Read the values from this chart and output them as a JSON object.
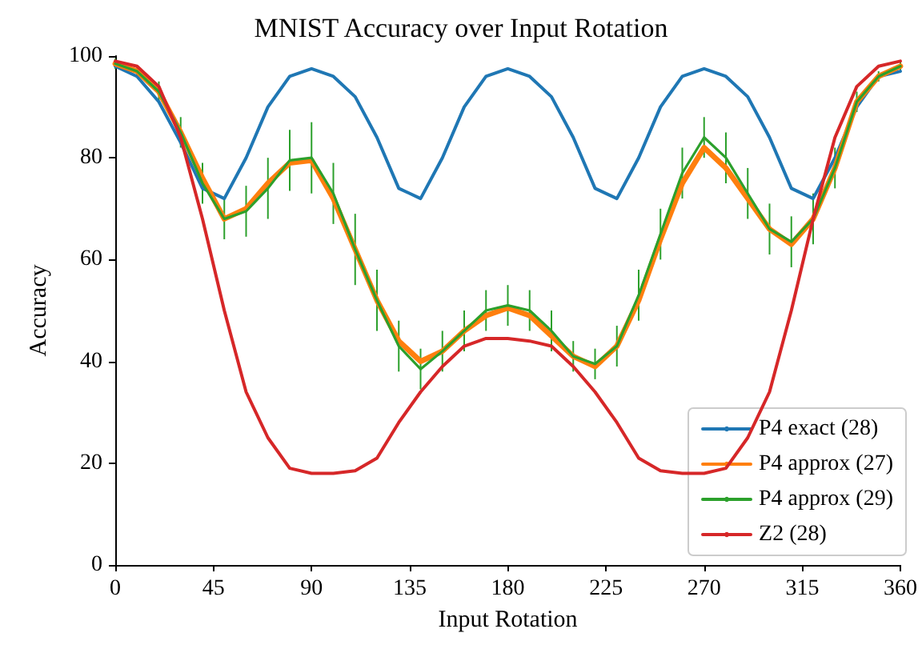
{
  "chart_data": {
    "type": "line",
    "title": "MNIST Accuracy over Input Rotation",
    "xlabel": "Input Rotation",
    "ylabel": "Accuracy",
    "x": [
      0,
      10,
      20,
      30,
      40,
      50,
      60,
      70,
      80,
      90,
      100,
      110,
      120,
      130,
      140,
      150,
      160,
      170,
      180,
      190,
      200,
      210,
      220,
      230,
      240,
      250,
      260,
      270,
      280,
      290,
      300,
      310,
      320,
      330,
      340,
      350,
      360
    ],
    "series": [
      {
        "name": "P4 exact (28)",
        "color": "#1f77b4",
        "values": [
          98,
          96,
          91,
          83,
          74,
          72,
          80,
          90,
          96,
          97.5,
          96,
          92,
          84,
          74,
          72,
          80,
          90,
          96,
          97.5,
          96,
          92,
          84,
          74,
          72,
          80,
          90,
          96,
          97.5,
          96,
          92,
          84,
          74,
          72,
          80,
          90,
          96,
          97
        ]
      },
      {
        "name": "P4 approx (27)",
        "color": "#ff7f0e",
        "values": [
          98.5,
          97,
          93,
          85,
          76,
          68,
          70,
          75,
          79,
          79.5,
          72,
          62,
          52,
          44,
          40,
          42,
          46,
          49,
          50.5,
          49,
          45,
          41,
          39,
          43,
          52,
          64,
          75,
          82,
          78,
          72,
          66,
          63,
          68,
          78,
          91,
          96,
          98
        ]
      },
      {
        "name": "P4 approx (29)",
        "color": "#2ca02c",
        "values": [
          98.5,
          97,
          93,
          85,
          75,
          68,
          69.5,
          74,
          79.5,
          80,
          73,
          62,
          52,
          43,
          38.5,
          42,
          46,
          50,
          51,
          50,
          46,
          41,
          39.5,
          43,
          53,
          65,
          77,
          84,
          80,
          73,
          66,
          63.5,
          68,
          78,
          91,
          96,
          98
        ],
        "errors": [
          1,
          1,
          2,
          3,
          4,
          4,
          5,
          6,
          6,
          7,
          6,
          7,
          6,
          5,
          4,
          4,
          4,
          4,
          4,
          4,
          4,
          3,
          3,
          4,
          5,
          5,
          5,
          4,
          5,
          5,
          5,
          5,
          5,
          4,
          2,
          1,
          1
        ]
      },
      {
        "name": "Z2 (28)",
        "color": "#d62728",
        "values": [
          99,
          98,
          94,
          84,
          68,
          50,
          34,
          25,
          19,
          18,
          18,
          18.5,
          21,
          28,
          34,
          39,
          43,
          44.5,
          44.5,
          44,
          43,
          39,
          34,
          28,
          21,
          18.5,
          18,
          18,
          19,
          25,
          34,
          50,
          68,
          84,
          94,
          98,
          99
        ]
      }
    ],
    "xlim": [
      0,
      360
    ],
    "xticks": [
      0,
      45,
      90,
      135,
      180,
      225,
      270,
      315,
      360
    ],
    "ylim": [
      0,
      100
    ],
    "yticks": [
      0,
      20,
      40,
      60,
      80,
      100
    ],
    "grid": false,
    "legend": "bottom right",
    "marker": "none",
    "line_style": "solid"
  }
}
